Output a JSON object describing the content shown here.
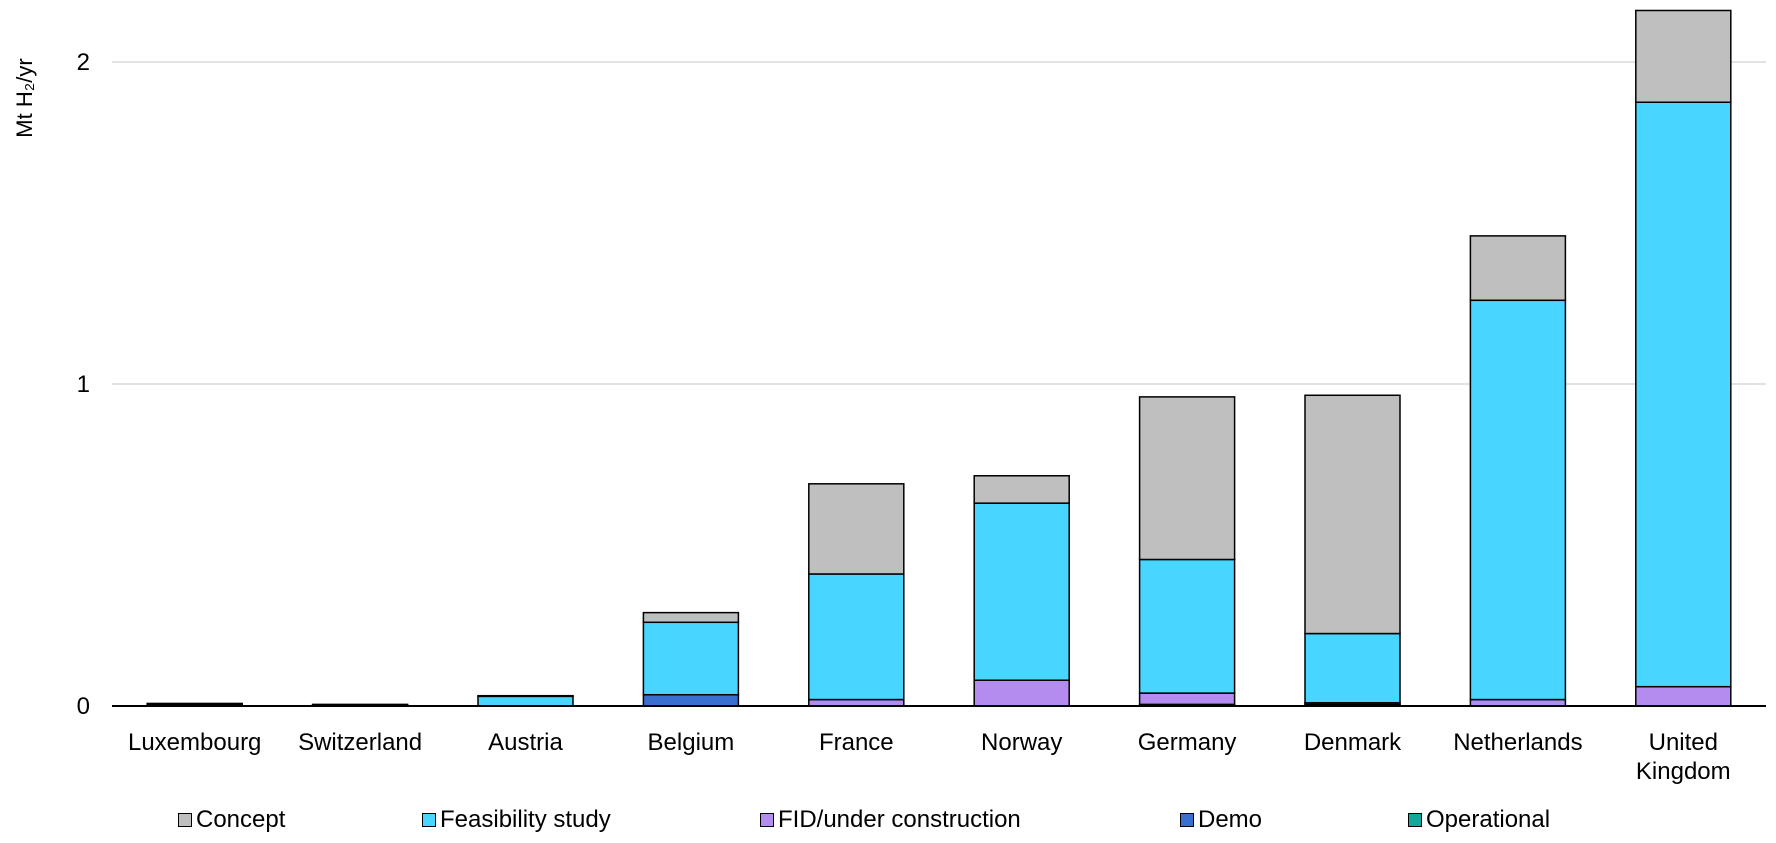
{
  "chart_data": {
    "type": "bar",
    "stacked": true,
    "title": "",
    "xlabel": "",
    "ylabel": "Mt H₂/yr",
    "ylim": [
      0,
      2.2
    ],
    "yticks": [
      "0",
      "1",
      "2"
    ],
    "grid": true,
    "legend_position": "bottom",
    "categories": [
      "Luxembourg",
      "Switzerland",
      "Austria",
      "Belgium",
      "France",
      "Norway",
      "Germany",
      "Denmark",
      "Netherlands",
      "United Kingdom"
    ],
    "series": [
      {
        "name": "Operational",
        "color": "#12a89a",
        "values": [
          0,
          0,
          0,
          0,
          0,
          0,
          0.005,
          0.005,
          0,
          0
        ]
      },
      {
        "name": "Demo",
        "color": "#3a6fd0",
        "values": [
          0,
          0,
          0,
          0.035,
          0,
          0,
          0,
          0.005,
          0,
          0
        ]
      },
      {
        "name": "FID/under construction",
        "color": "#b48cf0",
        "values": [
          0,
          0,
          0,
          0,
          0.02,
          0.08,
          0.035,
          0,
          0.02,
          0.06
        ]
      },
      {
        "name": "Feasibility study",
        "color": "#48d5ff",
        "values": [
          0.005,
          0.003,
          0.03,
          0.225,
          0.39,
          0.55,
          0.415,
          0.215,
          1.24,
          1.815
        ]
      },
      {
        "name": "Concept",
        "color": "#bfbfbf",
        "values": [
          0.003,
          0.002,
          0.002,
          0.03,
          0.28,
          0.085,
          0.505,
          0.74,
          0.2,
          0.285
        ]
      }
    ]
  }
}
